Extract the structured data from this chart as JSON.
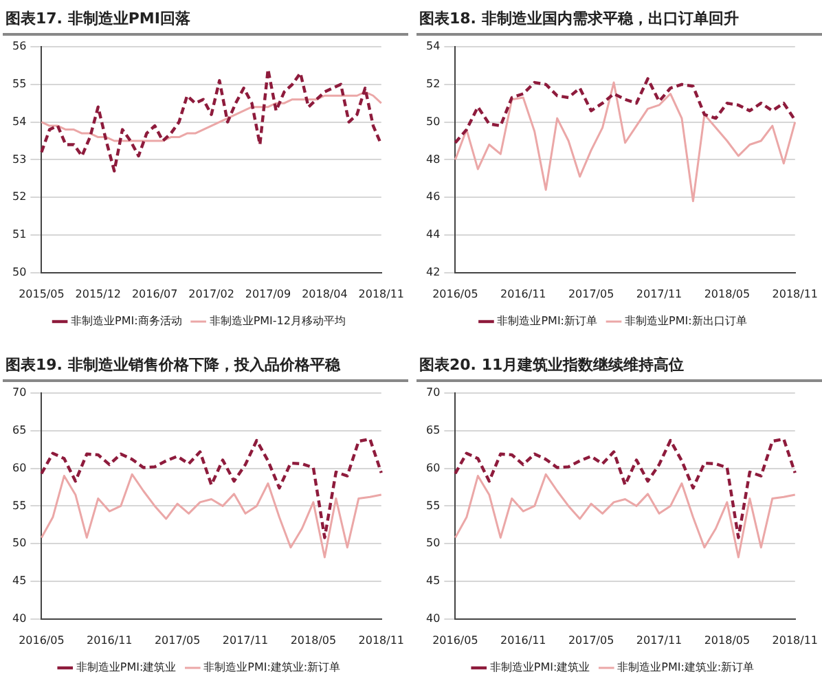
{
  "chart_data": [
    {
      "type": "line",
      "title": "图表17. 非制造业PMI回落",
      "categories": [
        "2015/05",
        null,
        null,
        null,
        null,
        null,
        null,
        "2015/12",
        null,
        null,
        null,
        null,
        null,
        null,
        "2016/07",
        null,
        null,
        null,
        null,
        null,
        null,
        "2017/02",
        null,
        null,
        null,
        null,
        null,
        null,
        "2017/09",
        null,
        null,
        null,
        null,
        null,
        null,
        "2018/04",
        null,
        null,
        null,
        null,
        null,
        null,
        "2018/11"
      ],
      "series": [
        {
          "name": "非制造业PMI:商务活动",
          "color": "#8e1b3c",
          "line_style": "dashed",
          "values": [
            53.2,
            53.8,
            53.9,
            53.4,
            53.4,
            53.1,
            53.6,
            54.4,
            53.5,
            52.7,
            53.8,
            53.5,
            53.1,
            53.7,
            53.9,
            53.5,
            53.7,
            54.0,
            54.7,
            54.5,
            54.6,
            54.2,
            55.1,
            54.0,
            54.5,
            54.9,
            54.5,
            53.4,
            55.4,
            54.3,
            54.8,
            55.0,
            55.3,
            54.4,
            54.6,
            54.8,
            54.9,
            55.0,
            54.0,
            54.2,
            54.9,
            53.9,
            53.4
          ]
        },
        {
          "name": "非制造业PMI-12月移动平均",
          "color": "#eba7a7",
          "line_style": "solid",
          "values": [
            54.0,
            53.9,
            53.9,
            53.8,
            53.8,
            53.7,
            53.7,
            53.6,
            53.6,
            53.5,
            53.5,
            53.5,
            53.5,
            53.5,
            53.5,
            53.5,
            53.6,
            53.6,
            53.7,
            53.7,
            53.8,
            53.9,
            54.0,
            54.1,
            54.2,
            54.3,
            54.4,
            54.4,
            54.4,
            54.5,
            54.5,
            54.6,
            54.6,
            54.6,
            54.6,
            54.7,
            54.7,
            54.7,
            54.7,
            54.7,
            54.8,
            54.7,
            54.5
          ]
        }
      ],
      "ylim": [
        50,
        56
      ],
      "yticks": [
        50,
        51,
        52,
        53,
        54,
        55,
        56
      ],
      "grid": "y",
      "legend": "bottom",
      "marker": "none"
    },
    {
      "type": "line",
      "title": "图表18. 非制造业国内需求平稳，出口订单回升",
      "categories": [
        "2016/05",
        null,
        null,
        null,
        null,
        null,
        "2016/11",
        null,
        null,
        null,
        null,
        null,
        "2017/05",
        null,
        null,
        null,
        null,
        null,
        "2017/11",
        null,
        null,
        null,
        null,
        null,
        "2018/05",
        null,
        null,
        null,
        null,
        null,
        "2018/11"
      ],
      "series": [
        {
          "name": "非制造业PMI:新订单",
          "color": "#8e1b3c",
          "line_style": "dashed",
          "values": [
            48.9,
            49.6,
            50.8,
            49.9,
            49.8,
            51.3,
            51.5,
            52.1,
            52.0,
            51.4,
            51.3,
            51.8,
            50.6,
            51.0,
            51.5,
            51.2,
            51.0,
            52.3,
            51.1,
            51.8,
            52.0,
            51.9,
            50.4,
            50.2,
            51.0,
            50.9,
            50.6,
            51.0,
            50.6,
            51.0,
            50.1
          ]
        },
        {
          "name": "非制造业PMI:新出口订单",
          "color": "#eba7a7",
          "line_style": "solid",
          "values": [
            48.0,
            49.6,
            47.5,
            48.8,
            48.3,
            51.2,
            51.3,
            49.5,
            46.4,
            50.2,
            49.0,
            47.1,
            48.5,
            49.7,
            52.1,
            48.9,
            49.8,
            50.7,
            50.9,
            51.5,
            50.2,
            45.8,
            50.4,
            49.7,
            49.0,
            48.2,
            48.8,
            49.0,
            49.8,
            47.8,
            50.0
          ]
        }
      ],
      "ylim": [
        42,
        54
      ],
      "yticks": [
        42,
        44,
        46,
        48,
        50,
        52,
        54
      ],
      "grid": "y",
      "legend": "bottom",
      "marker": "none"
    },
    {
      "type": "line",
      "title": "图表19. 非制造业销售价格下降，投入品价格平稳",
      "categories": [
        "2016/05",
        null,
        null,
        null,
        null,
        null,
        "2016/11",
        null,
        null,
        null,
        null,
        null,
        "2017/05",
        null,
        null,
        null,
        null,
        null,
        "2017/11",
        null,
        null,
        null,
        null,
        null,
        "2018/05",
        null,
        null,
        null,
        null,
        null,
        "2018/11"
      ],
      "series": [
        {
          "name": "非制造业PMI:建筑业",
          "color": "#8e1b3c",
          "line_style": "dashed",
          "values": [
            59.3,
            62.0,
            61.3,
            58.3,
            61.9,
            61.8,
            60.5,
            61.9,
            61.2,
            60.1,
            60.2,
            61.0,
            61.6,
            60.6,
            62.2,
            57.8,
            61.1,
            58.3,
            60.5,
            63.7,
            61.0,
            57.4,
            60.7,
            60.6,
            60.1,
            50.8,
            59.5,
            59.0,
            63.6,
            63.9,
            59.4
          ]
        },
        {
          "name": "非制造业PMI:建筑业:新订单",
          "color": "#eba7a7",
          "line_style": "solid",
          "values": [
            50.8,
            53.5,
            59.0,
            56.5,
            50.8,
            56.0,
            54.3,
            55.0,
            59.2,
            57.0,
            55.0,
            53.3,
            55.3,
            54.0,
            55.5,
            55.9,
            55.0,
            56.6,
            54.0,
            55.0,
            58.0,
            53.5,
            49.5,
            52.0,
            55.5,
            48.2,
            56.0,
            49.5,
            56.0,
            56.2,
            56.5
          ]
        }
      ],
      "ylim": [
        40,
        70
      ],
      "yticks": [
        40,
        45,
        50,
        55,
        60,
        65,
        70
      ],
      "grid": "y",
      "legend": "bottom",
      "marker": "none"
    },
    {
      "type": "line",
      "title": "图表20. 11月建筑业指数继续维持高位",
      "categories": [
        "2016/05",
        null,
        null,
        null,
        null,
        null,
        "2016/11",
        null,
        null,
        null,
        null,
        null,
        "2017/05",
        null,
        null,
        null,
        null,
        null,
        "2017/11",
        null,
        null,
        null,
        null,
        null,
        "2018/05",
        null,
        null,
        null,
        null,
        null,
        "2018/11"
      ],
      "series": [
        {
          "name": "非制造业PMI:建筑业",
          "color": "#8e1b3c",
          "line_style": "dashed",
          "values": [
            59.3,
            62.0,
            61.3,
            58.3,
            61.9,
            61.8,
            60.5,
            61.9,
            61.2,
            60.1,
            60.2,
            61.0,
            61.6,
            60.6,
            62.2,
            57.8,
            61.1,
            58.3,
            60.5,
            63.7,
            61.0,
            57.4,
            60.7,
            60.6,
            60.1,
            50.8,
            59.5,
            59.0,
            63.6,
            63.9,
            59.4
          ]
        },
        {
          "name": "非制造业PMI:建筑业:新订单",
          "color": "#eba7a7",
          "line_style": "solid",
          "values": [
            50.8,
            53.5,
            59.0,
            56.5,
            50.8,
            56.0,
            54.3,
            55.0,
            59.2,
            57.0,
            55.0,
            53.3,
            55.3,
            54.0,
            55.5,
            55.9,
            55.0,
            56.6,
            54.0,
            55.0,
            58.0,
            53.5,
            49.5,
            52.0,
            55.5,
            48.2,
            56.0,
            49.5,
            56.0,
            56.2,
            56.5
          ]
        }
      ],
      "ylim": [
        40,
        70
      ],
      "yticks": [
        40,
        45,
        50,
        55,
        60,
        65,
        70
      ],
      "grid": "y",
      "legend": "bottom",
      "marker": "none"
    }
  ]
}
